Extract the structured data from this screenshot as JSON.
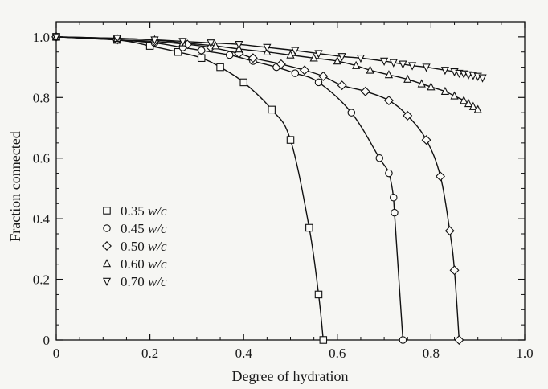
{
  "chart_data": {
    "type": "line",
    "title": "",
    "xlabel": "Degree of hydration",
    "ylabel": "Fraction connected",
    "xlim": [
      0,
      1.0
    ],
    "ylim": [
      0,
      1.05
    ],
    "xticks": [
      "0",
      "0.2",
      "0.4",
      "0.6",
      "0.8",
      "1.0"
    ],
    "yticks": [
      "0",
      "0.2",
      "0.4",
      "0.6",
      "0.8",
      "1.0"
    ],
    "grid": false,
    "legend_position": "lower-left",
    "series": [
      {
        "name": "0.35",
        "unit": "w/c",
        "marker": "square",
        "x": [
          0.0,
          0.13,
          0.2,
          0.26,
          0.31,
          0.35,
          0.4,
          0.46,
          0.5,
          0.54,
          0.56,
          0.57
        ],
        "y": [
          1.0,
          0.99,
          0.97,
          0.95,
          0.93,
          0.9,
          0.85,
          0.76,
          0.66,
          0.37,
          0.15,
          0.0
        ]
      },
      {
        "name": "0.45",
        "unit": "w/c",
        "marker": "circle",
        "x": [
          0.0,
          0.13,
          0.21,
          0.27,
          0.31,
          0.37,
          0.42,
          0.47,
          0.51,
          0.56,
          0.63,
          0.69,
          0.71,
          0.72,
          0.722,
          0.74
        ],
        "y": [
          1.0,
          0.99,
          0.98,
          0.965,
          0.955,
          0.94,
          0.92,
          0.9,
          0.88,
          0.85,
          0.75,
          0.6,
          0.55,
          0.47,
          0.42,
          0.0
        ]
      },
      {
        "name": "0.50",
        "unit": "w/c",
        "marker": "diamond",
        "x": [
          0.0,
          0.13,
          0.21,
          0.28,
          0.33,
          0.39,
          0.42,
          0.48,
          0.53,
          0.57,
          0.61,
          0.66,
          0.71,
          0.75,
          0.79,
          0.82,
          0.84,
          0.85,
          0.86
        ],
        "y": [
          1.0,
          0.99,
          0.985,
          0.975,
          0.965,
          0.945,
          0.93,
          0.91,
          0.89,
          0.87,
          0.84,
          0.82,
          0.79,
          0.74,
          0.66,
          0.54,
          0.36,
          0.23,
          0.0
        ]
      },
      {
        "name": "0.60",
        "unit": "w/c",
        "marker": "triangle-up",
        "x": [
          0.0,
          0.13,
          0.21,
          0.27,
          0.34,
          0.39,
          0.45,
          0.5,
          0.55,
          0.6,
          0.64,
          0.67,
          0.71,
          0.75,
          0.78,
          0.8,
          0.83,
          0.85,
          0.87,
          0.88,
          0.89,
          0.9
        ],
        "y": [
          1.0,
          0.995,
          0.99,
          0.98,
          0.97,
          0.96,
          0.95,
          0.94,
          0.93,
          0.92,
          0.905,
          0.89,
          0.875,
          0.86,
          0.845,
          0.835,
          0.82,
          0.805,
          0.79,
          0.78,
          0.77,
          0.76
        ]
      },
      {
        "name": "0.70",
        "unit": "w/c",
        "marker": "triangle-down",
        "x": [
          0.0,
          0.13,
          0.21,
          0.27,
          0.33,
          0.39,
          0.45,
          0.51,
          0.56,
          0.61,
          0.65,
          0.7,
          0.72,
          0.74,
          0.76,
          0.79,
          0.83,
          0.85,
          0.86,
          0.87,
          0.88,
          0.89,
          0.9,
          0.91
        ],
        "y": [
          1.0,
          0.995,
          0.99,
          0.985,
          0.98,
          0.975,
          0.965,
          0.955,
          0.945,
          0.935,
          0.93,
          0.92,
          0.915,
          0.91,
          0.905,
          0.9,
          0.89,
          0.885,
          0.88,
          0.878,
          0.875,
          0.873,
          0.87,
          0.865
        ]
      }
    ]
  }
}
